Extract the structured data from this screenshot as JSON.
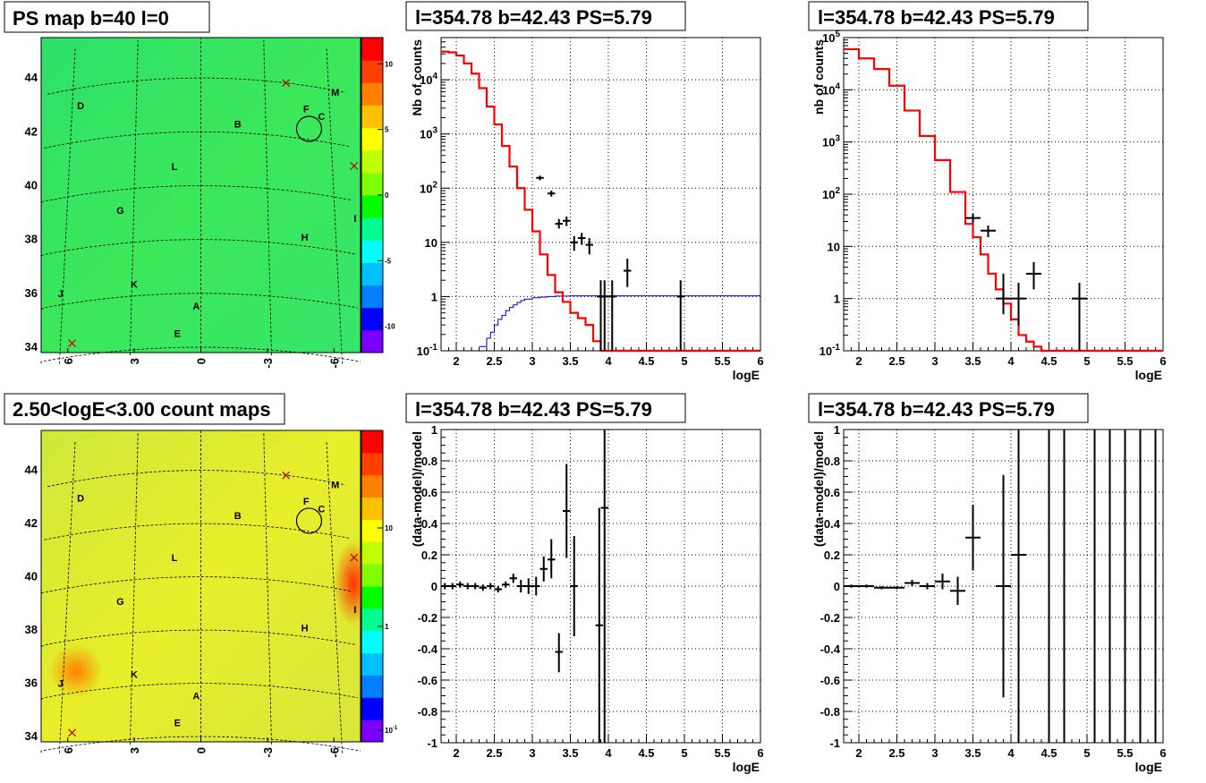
{
  "colors": {
    "hist": "#ff0000",
    "psf": "#0000cc",
    "data": "#000000",
    "grid": "#000000"
  },
  "map_gradient": [
    "#7a00ff",
    "#0000ff",
    "#0080ff",
    "#00c0ff",
    "#00ffff",
    "#00ff90",
    "#00ff00",
    "#80ff00",
    "#c0ff00",
    "#ffff00",
    "#ffc000",
    "#ff8000",
    "#ff4000",
    "#ff0000"
  ],
  "chart_data": [
    {
      "type": "heatmap",
      "title": "PS map b=40 l=0",
      "x_ticks": [
        "6",
        "3",
        "0",
        "-3",
        "-6"
      ],
      "y_ticks": [
        "44",
        "42",
        "40",
        "38",
        "36",
        "34"
      ],
      "colorbar_ticks": [
        "10",
        "5",
        "0",
        "-5",
        "-10"
      ],
      "colorbar_range": [
        -12,
        12
      ],
      "sources": [
        {
          "label": "D",
          "lon": 5.6,
          "lat": 43.2
        },
        {
          "label": "M",
          "lon": -6.3,
          "lat": 43.8
        },
        {
          "label": "F",
          "lon": -4.9,
          "lat": 43.0
        },
        {
          "label": "C",
          "lon": -5.6,
          "lat": 42.8
        },
        {
          "label": "B",
          "lon": -1.7,
          "lat": 42.2
        },
        {
          "label": "L",
          "lon": 1.2,
          "lat": 40.6
        },
        {
          "label": "G",
          "lon": 3.6,
          "lat": 39.1
        },
        {
          "label": "I",
          "lon": -6.9,
          "lat": 39.2
        },
        {
          "label": "H",
          "lon": -4.6,
          "lat": 38.2
        },
        {
          "label": "J",
          "lon": 6.1,
          "lat": 36.3
        },
        {
          "label": "K",
          "lon": 2.9,
          "lat": 36.3
        },
        {
          "label": "A",
          "lon": 0.2,
          "lat": 35.4
        },
        {
          "label": "E",
          "lon": 1.0,
          "lat": 34.4
        }
      ],
      "markers": [
        {
          "lon": -4.0,
          "lat": 44.0
        },
        {
          "lon": -7.0,
          "lat": 41.3
        },
        {
          "lon": 5.5,
          "lat": 34.5
        }
      ],
      "circle": {
        "lon": -5.0,
        "lat": 42.4
      }
    },
    {
      "type": "line",
      "title": "l=354.78 b=42.43 PS=5.79",
      "xlabel": "logE",
      "ylabel": "Nb of counts",
      "xlim": [
        1.8,
        6
      ],
      "ylim": [
        0.1,
        60000
      ],
      "yscale": "log",
      "x_ticks": [
        "2",
        "2.5",
        "3",
        "3.5",
        "4",
        "4.5",
        "5",
        "5.5",
        "6"
      ],
      "y_ticks": [
        "10^-1",
        "1",
        "10",
        "10^2",
        "10^3",
        "10^4"
      ],
      "model": {
        "edges": [
          1.8,
          1.9,
          2.0,
          2.1,
          2.2,
          2.3,
          2.4,
          2.5,
          2.6,
          2.7,
          2.8,
          2.9,
          3.0,
          3.1,
          3.2,
          3.3,
          3.4,
          3.5,
          3.6,
          3.7,
          3.8,
          3.9,
          4.0,
          4.1,
          4.2,
          4.3,
          4.4,
          6.0
        ],
        "values": [
          33000,
          32000,
          28000,
          20000,
          13000,
          7000,
          3200,
          1500,
          600,
          250,
          100,
          40,
          16,
          6,
          2.5,
          1.2,
          0.8,
          0.5,
          0.4,
          0.3,
          0.15,
          0.1,
          0.1,
          0.1,
          0.1,
          0.1,
          0.1
        ]
      },
      "psf": {
        "edges": [
          2.3,
          2.4,
          2.45,
          2.5,
          2.55,
          2.6,
          2.65,
          2.7,
          2.75,
          2.8,
          2.85,
          2.9,
          3.0,
          3.1,
          3.2,
          3.3,
          3.5,
          6.0
        ],
        "values": [
          0.12,
          0.17,
          0.22,
          0.3,
          0.38,
          0.45,
          0.55,
          0.63,
          0.7,
          0.78,
          0.85,
          0.9,
          0.95,
          0.98,
          1.0,
          1.02,
          1.03
        ]
      },
      "data": [
        {
          "x": 3.1,
          "y": 155,
          "lo": 140,
          "hi": 170,
          "xe": 0.05
        },
        {
          "x": 3.25,
          "y": 80,
          "lo": 70,
          "hi": 90,
          "xe": 0.05
        },
        {
          "x": 3.35,
          "y": 22,
          "lo": 18,
          "hi": 27,
          "xe": 0.05
        },
        {
          "x": 3.45,
          "y": 25,
          "lo": 20,
          "hi": 30,
          "xe": 0.05
        },
        {
          "x": 3.55,
          "y": 10,
          "lo": 7,
          "hi": 13,
          "xe": 0.05
        },
        {
          "x": 3.65,
          "y": 12,
          "lo": 9,
          "hi": 15,
          "xe": 0.05
        },
        {
          "x": 3.75,
          "y": 9,
          "lo": 6,
          "hi": 12,
          "xe": 0.05
        },
        {
          "x": 3.9,
          "y": 1,
          "lo": 0.1,
          "hi": 2,
          "xe": 0.05
        },
        {
          "x": 3.95,
          "y": 1,
          "lo": 0.1,
          "hi": 2,
          "xe": 0.05
        },
        {
          "x": 4.05,
          "y": 1,
          "lo": 0.1,
          "hi": 2,
          "xe": 0.05
        },
        {
          "x": 4.25,
          "y": 3,
          "lo": 1.5,
          "hi": 5,
          "xe": 0.05
        },
        {
          "x": 4.95,
          "y": 1,
          "lo": 0.1,
          "hi": 2,
          "xe": 0.05
        }
      ]
    },
    {
      "type": "line",
      "title": "l=354.78 b=42.43 PS=5.79",
      "xlabel": "logE",
      "ylabel": "nb of counts",
      "xlim": [
        1.8,
        6
      ],
      "ylim": [
        0.1,
        100000
      ],
      "yscale": "log",
      "x_ticks": [
        "2",
        "2.5",
        "3",
        "3.5",
        "4",
        "4.5",
        "5",
        "5.5",
        "6"
      ],
      "y_ticks": [
        "10^-1",
        "1",
        "10",
        "10^2",
        "10^3",
        "10^4",
        "10^5"
      ],
      "model": {
        "edges": [
          1.8,
          2.0,
          2.2,
          2.4,
          2.6,
          2.8,
          3.0,
          3.2,
          3.4,
          3.5,
          3.6,
          3.7,
          3.8,
          3.9,
          4.0,
          4.1,
          4.2,
          4.3,
          4.4,
          4.6,
          6.0
        ],
        "values": [
          60000,
          40000,
          25000,
          12000,
          4000,
          1300,
          450,
          110,
          27,
          15,
          7,
          3,
          1.5,
          0.8,
          0.4,
          0.2,
          0.15,
          0.12,
          0.1,
          0.1
        ]
      },
      "data": [
        {
          "x": 3.5,
          "y": 35,
          "lo": 28,
          "hi": 42,
          "xe": 0.1
        },
        {
          "x": 3.7,
          "y": 20,
          "lo": 15,
          "hi": 25,
          "xe": 0.1
        },
        {
          "x": 3.9,
          "y": 1,
          "lo": 0.5,
          "hi": 3,
          "xe": 0.1
        },
        {
          "x": 4.1,
          "y": 1,
          "lo": 0.3,
          "hi": 2,
          "xe": 0.1
        },
        {
          "x": 4.3,
          "y": 3,
          "lo": 1.5,
          "hi": 5,
          "xe": 0.1
        },
        {
          "x": 4.9,
          "y": 1,
          "lo": 0.1,
          "hi": 2,
          "xe": 0.1
        }
      ]
    },
    {
      "type": "heatmap",
      "title": "2.50<logE<3.00 count maps",
      "x_ticks": [
        "6",
        "3",
        "0",
        "-3",
        "-6"
      ],
      "y_ticks": [
        "44",
        "42",
        "40",
        "38",
        "36",
        "34"
      ],
      "colorbar_ticks": [
        "10",
        "1",
        "10^-1"
      ],
      "colorbar_scale": "log"
    },
    {
      "type": "scatter",
      "title": "l=354.78 b=42.43 PS=5.79",
      "xlabel": "logE",
      "ylabel": "(data-model)/model",
      "xlim": [
        1.8,
        6
      ],
      "ylim": [
        -1,
        1
      ],
      "x_ticks": [
        "2",
        "2.5",
        "3",
        "3.5",
        "4",
        "4.5",
        "5",
        "5.5",
        "6"
      ],
      "y_ticks": [
        "-1",
        "-0.8",
        "-0.6",
        "-0.4",
        "-0.2",
        "0",
        "0.2",
        "0.4",
        "0.6",
        "0.8",
        "1"
      ],
      "data": [
        {
          "x": 1.85,
          "y": 0.0,
          "lo": -0.02,
          "hi": 0.02,
          "xe": 0.05
        },
        {
          "x": 1.95,
          "y": 0.0,
          "lo": -0.02,
          "hi": 0.02,
          "xe": 0.05
        },
        {
          "x": 2.05,
          "y": 0.01,
          "lo": -0.01,
          "hi": 0.03,
          "xe": 0.05
        },
        {
          "x": 2.15,
          "y": 0.0,
          "lo": -0.02,
          "hi": 0.02,
          "xe": 0.05
        },
        {
          "x": 2.25,
          "y": 0.0,
          "lo": -0.02,
          "hi": 0.02,
          "xe": 0.05
        },
        {
          "x": 2.35,
          "y": -0.01,
          "lo": -0.03,
          "hi": 0.01,
          "xe": 0.05
        },
        {
          "x": 2.45,
          "y": 0.0,
          "lo": -0.02,
          "hi": 0.02,
          "xe": 0.05
        },
        {
          "x": 2.55,
          "y": -0.02,
          "lo": -0.04,
          "hi": 0.0,
          "xe": 0.05
        },
        {
          "x": 2.65,
          "y": 0.01,
          "lo": -0.01,
          "hi": 0.03,
          "xe": 0.05
        },
        {
          "x": 2.75,
          "y": 0.05,
          "lo": 0.02,
          "hi": 0.08,
          "xe": 0.05
        },
        {
          "x": 2.85,
          "y": 0.0,
          "lo": -0.04,
          "hi": 0.04,
          "xe": 0.05
        },
        {
          "x": 2.95,
          "y": 0.0,
          "lo": -0.05,
          "hi": 0.05,
          "xe": 0.05
        },
        {
          "x": 3.05,
          "y": 0.0,
          "lo": -0.06,
          "hi": 0.06,
          "xe": 0.05
        },
        {
          "x": 3.15,
          "y": 0.11,
          "lo": 0.03,
          "hi": 0.19,
          "xe": 0.05
        },
        {
          "x": 3.25,
          "y": 0.17,
          "lo": 0.05,
          "hi": 0.3,
          "xe": 0.05
        },
        {
          "x": 3.35,
          "y": -0.42,
          "lo": -0.55,
          "hi": -0.3,
          "xe": 0.05
        },
        {
          "x": 3.45,
          "y": 0.48,
          "lo": 0.18,
          "hi": 0.78,
          "xe": 0.05
        },
        {
          "x": 3.55,
          "y": 0.0,
          "lo": -0.32,
          "hi": 0.32,
          "xe": 0.05
        },
        {
          "x": 3.88,
          "y": -0.25,
          "lo": -1.0,
          "hi": 0.5,
          "xe": 0.05
        },
        {
          "x": 3.95,
          "y": 0.5,
          "lo": -1.0,
          "hi": 1.0,
          "xe": 0.05
        }
      ]
    },
    {
      "type": "scatter",
      "title": "l=354.78 b=42.43 PS=5.79",
      "xlabel": "logE",
      "ylabel": "(data-model)/model",
      "xlim": [
        1.8,
        6
      ],
      "ylim": [
        -1,
        1
      ],
      "x_ticks": [
        "2",
        "2.5",
        "3",
        "3.5",
        "4",
        "4.5",
        "5",
        "5.5",
        "6"
      ],
      "y_ticks": [
        "-1",
        "-0.8",
        "-0.6",
        "-0.4",
        "-0.2",
        "0",
        "0.2",
        "0.4",
        "0.6",
        "0.8",
        "1"
      ],
      "data": [
        {
          "x": 1.9,
          "y": 0.0,
          "lo": -0.01,
          "hi": 0.01,
          "xe": 0.1
        },
        {
          "x": 2.1,
          "y": 0.0,
          "lo": -0.01,
          "hi": 0.01,
          "xe": 0.1
        },
        {
          "x": 2.3,
          "y": -0.01,
          "lo": -0.02,
          "hi": 0.0,
          "xe": 0.1
        },
        {
          "x": 2.5,
          "y": -0.01,
          "lo": -0.02,
          "hi": 0.0,
          "xe": 0.1
        },
        {
          "x": 2.7,
          "y": 0.02,
          "lo": 0.0,
          "hi": 0.04,
          "xe": 0.1
        },
        {
          "x": 2.9,
          "y": 0.0,
          "lo": -0.02,
          "hi": 0.02,
          "xe": 0.1
        },
        {
          "x": 3.1,
          "y": 0.03,
          "lo": -0.02,
          "hi": 0.08,
          "xe": 0.1
        },
        {
          "x": 3.3,
          "y": -0.03,
          "lo": -0.12,
          "hi": 0.06,
          "xe": 0.1
        },
        {
          "x": 3.5,
          "y": 0.31,
          "lo": 0.1,
          "hi": 0.52,
          "xe": 0.1
        },
        {
          "x": 3.9,
          "y": 0.0,
          "lo": -0.71,
          "hi": 0.71,
          "xe": 0.1
        },
        {
          "x": 4.1,
          "y": 0.2,
          "lo": -1.0,
          "hi": 1.0,
          "xe": 0.1
        },
        {
          "x": 4.5,
          "y": 1.0,
          "lo": -1.0,
          "hi": 1.0,
          "xe": 0.0
        },
        {
          "x": 4.7,
          "y": 1.0,
          "lo": -1.0,
          "hi": 1.0,
          "xe": 0.0
        },
        {
          "x": 5.1,
          "y": 1.0,
          "lo": -1.0,
          "hi": 1.0,
          "xe": 0.0
        },
        {
          "x": 5.3,
          "y": 1.0,
          "lo": -1.0,
          "hi": 1.0,
          "xe": 0.0
        },
        {
          "x": 5.5,
          "y": 1.0,
          "lo": -1.0,
          "hi": 1.0,
          "xe": 0.0
        },
        {
          "x": 5.7,
          "y": 1.0,
          "lo": -1.0,
          "hi": 1.0,
          "xe": 0.0
        },
        {
          "x": 5.9,
          "y": 1.0,
          "lo": -1.0,
          "hi": 1.0,
          "xe": 0.0
        }
      ]
    }
  ]
}
